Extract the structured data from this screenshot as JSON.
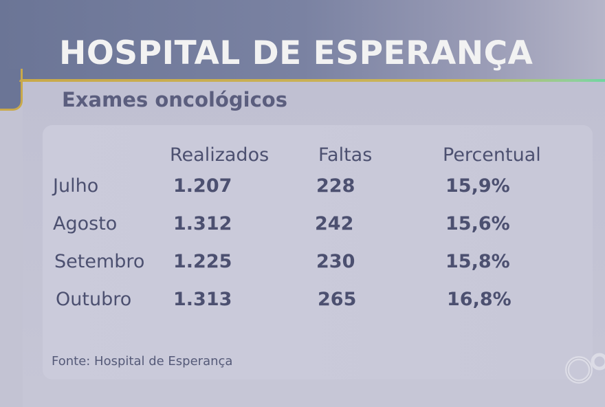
{
  "title": "HOSPITAL DE ESPERANÇA",
  "subtitle": "Exames oncológicos",
  "source": "Fonte: Hospital de Esperança",
  "colors": {
    "header": "#6b7596",
    "accent_line": "#c9a94a",
    "background": "#c3c3d3",
    "text": "#4c5070"
  },
  "logo": "tv-network-rings-logo",
  "chart_data": {
    "type": "table",
    "title": "Exames oncológicos",
    "columns": [
      "",
      "Realizados",
      "Faltas",
      "Percentual"
    ],
    "rows": [
      {
        "label": "Julho",
        "realizados": "1.207",
        "faltas": "228",
        "percentual": "15,9%"
      },
      {
        "label": "Agosto",
        "realizados": "1.312",
        "faltas": "242",
        "percentual": "15,6%"
      },
      {
        "label": "Setembro",
        "realizados": "1.225",
        "faltas": "230",
        "percentual": "15,8%"
      },
      {
        "label": "Outubro",
        "realizados": "1.313",
        "faltas": "265",
        "percentual": "16,8%"
      }
    ]
  }
}
